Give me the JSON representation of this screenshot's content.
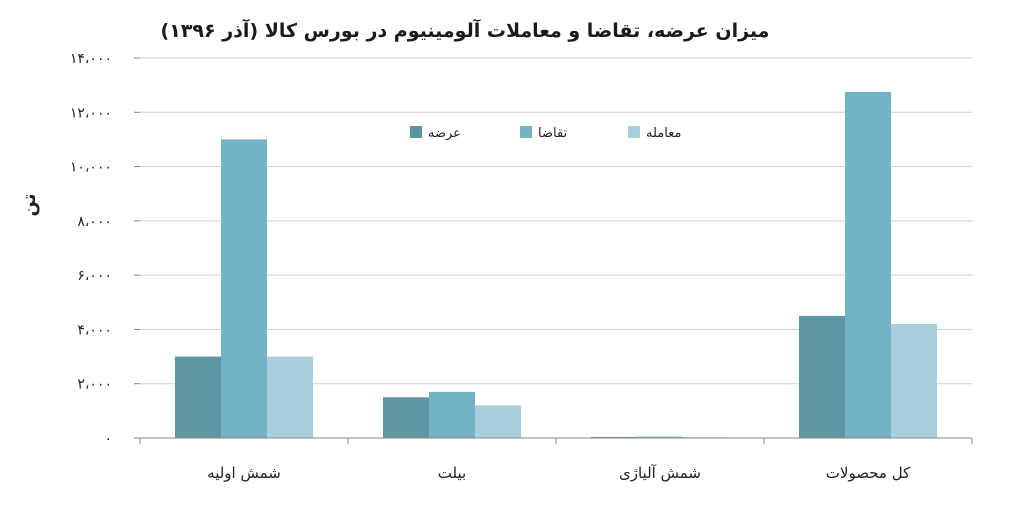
{
  "chart_data": {
    "type": "bar",
    "title": "میزان عرضه، تقاضا و معاملات آلومینیوم در بورس کالا (آذر ۱۳۹۶)",
    "ylabel": "تن",
    "xlabel": "",
    "ylim": [
      0,
      14000
    ],
    "y_ticks": [
      0,
      2000,
      4000,
      6000,
      8000,
      10000,
      12000,
      14000
    ],
    "y_tick_labels": [
      "۰",
      "۲،۰۰۰",
      "۴،۰۰۰",
      "۶،۰۰۰",
      "۸،۰۰۰",
      "۱۰،۰۰۰",
      "۱۲،۰۰۰",
      "۱۴،۰۰۰"
    ],
    "categories": [
      "شمش اولیه",
      "بیلت",
      "شمش آلیاژی",
      "کل محصولات"
    ],
    "series": [
      {
        "name": "عرضه",
        "color": "#5f96a3",
        "values": [
          3000,
          1500,
          40,
          4500
        ]
      },
      {
        "name": "تقاضا",
        "color": "#74b3c6",
        "values": [
          11000,
          1700,
          50,
          12750
        ]
      },
      {
        "name": "معامله",
        "color": "#a7d0dc",
        "values": [
          3000,
          1200,
          30,
          4200
        ]
      }
    ],
    "grid": true,
    "legend_position": "top-center"
  }
}
